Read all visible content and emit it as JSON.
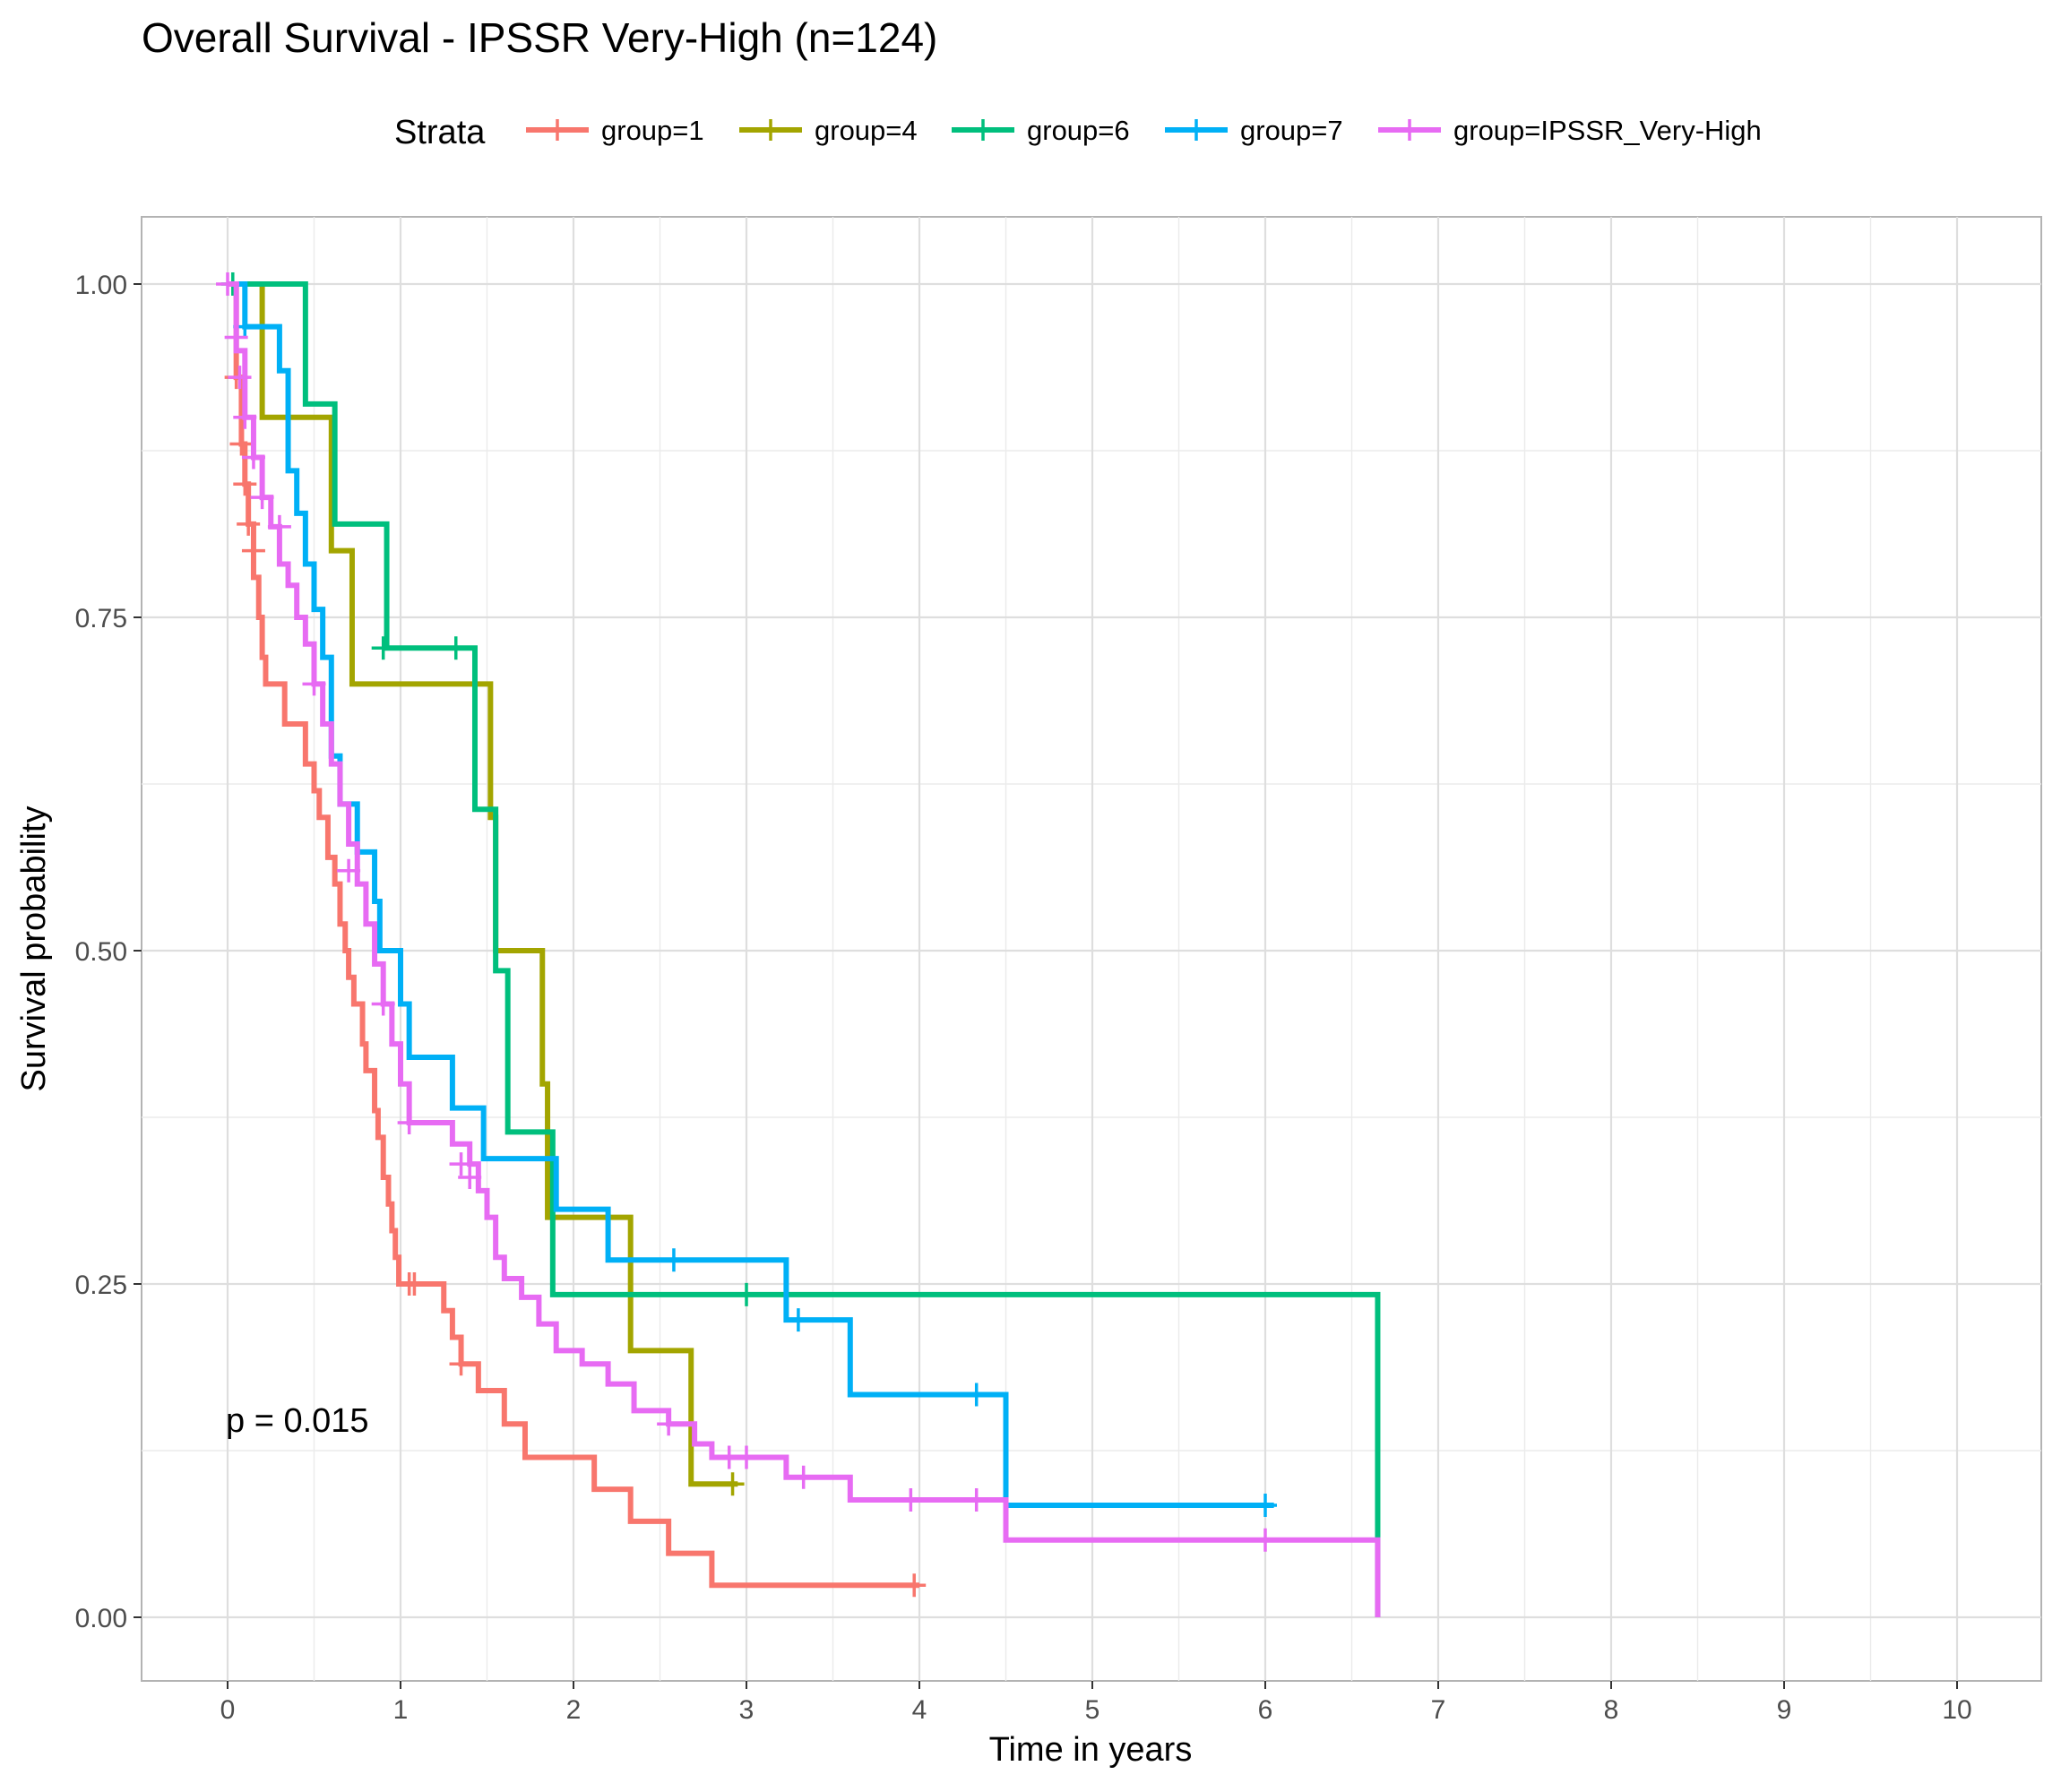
{
  "chart_data": {
    "type": "line",
    "step": true,
    "title": "Overall Survival - IPSSR Very-High (n=124)",
    "xlabel": "Time in years",
    "ylabel": "Survival probability",
    "xlim": [
      -0.5,
      10.5
    ],
    "ylim": [
      -0.05,
      1.05
    ],
    "x_ticks": [
      0,
      1,
      2,
      3,
      4,
      5,
      6,
      7,
      8,
      9,
      10
    ],
    "x_tick_labels": [
      "0",
      "1",
      "2",
      "3",
      "4",
      "5",
      "6",
      "7",
      "8",
      "9",
      "10"
    ],
    "y_ticks": [
      0,
      0.25,
      0.5,
      0.75,
      1
    ],
    "y_tick_labels": [
      "0.00",
      "0.25",
      "0.50",
      "0.75",
      "1.00"
    ],
    "grid": true,
    "legend_title": "Strata",
    "legend_position": "top",
    "annotation": "p = 0.015",
    "series": [
      {
        "name": "group=1",
        "color": "#F8766D",
        "x": [
          0,
          0.05,
          0.08,
          0.1,
          0.12,
          0.15,
          0.18,
          0.2,
          0.22,
          0.25,
          0.33,
          0.45,
          0.5,
          0.53,
          0.58,
          0.62,
          0.65,
          0.68,
          0.7,
          0.73,
          0.78,
          0.8,
          0.85,
          0.87,
          0.9,
          0.93,
          0.95,
          0.97,
          0.99,
          1.0,
          1.25,
          1.3,
          1.35,
          1.45,
          1.6,
          1.72,
          2.12,
          2.33,
          2.55,
          2.8,
          4.0
        ],
        "y": [
          1.0,
          0.93,
          0.88,
          0.85,
          0.82,
          0.78,
          0.75,
          0.72,
          0.7,
          0.7,
          0.67,
          0.64,
          0.62,
          0.6,
          0.57,
          0.55,
          0.52,
          0.5,
          0.48,
          0.46,
          0.43,
          0.41,
          0.38,
          0.36,
          0.33,
          0.31,
          0.29,
          0.27,
          0.25,
          0.25,
          0.23,
          0.21,
          0.19,
          0.17,
          0.145,
          0.12,
          0.096,
          0.072,
          0.048,
          0.024,
          0.024
        ],
        "censor_x": [
          0.05,
          0.08,
          0.1,
          0.12,
          0.15,
          1.05,
          1.08,
          1.35,
          3.97
        ],
        "censor_y": [
          0.93,
          0.88,
          0.85,
          0.82,
          0.8,
          0.25,
          0.25,
          0.19,
          0.024
        ]
      },
      {
        "name": "group=4",
        "color": "#A3A500",
        "x": [
          0,
          0.2,
          0.6,
          0.72,
          1.52,
          1.55,
          1.82,
          1.85,
          2.33,
          2.68,
          2.95
        ],
        "y": [
          1.0,
          0.9,
          0.8,
          0.7,
          0.6,
          0.5,
          0.4,
          0.3,
          0.2,
          0.1,
          0.1
        ],
        "censor_x": [
          2.92
        ],
        "censor_y": [
          0.1
        ]
      },
      {
        "name": "group=6",
        "color": "#00BF7D",
        "x": [
          0,
          0.45,
          0.62,
          0.92,
          1.43,
          1.55,
          1.58,
          1.62,
          1.88,
          6.65,
          6.65
        ],
        "y": [
          1.0,
          0.91,
          0.82,
          0.727,
          0.606,
          0.485,
          0.485,
          0.364,
          0.242,
          0.242,
          0.0
        ],
        "censor_x": [
          0.03,
          0.9,
          1.32,
          3.0
        ],
        "censor_y": [
          1.0,
          0.727,
          0.727,
          0.242
        ]
      },
      {
        "name": "group=7",
        "color": "#00B0F6",
        "x": [
          0,
          0.1,
          0.3,
          0.35,
          0.4,
          0.45,
          0.5,
          0.55,
          0.6,
          0.65,
          0.75,
          0.85,
          0.88,
          1.0,
          1.05,
          1.3,
          1.48,
          1.9,
          2.2,
          3.23,
          3.6,
          4.5,
          6.05
        ],
        "y": [
          1.0,
          0.968,
          0.935,
          0.86,
          0.828,
          0.79,
          0.756,
          0.72,
          0.646,
          0.61,
          0.574,
          0.537,
          0.5,
          0.46,
          0.42,
          0.382,
          0.344,
          0.306,
          0.268,
          0.223,
          0.167,
          0.084,
          0.084
        ],
        "censor_x": [
          0.1,
          2.58,
          3.3,
          4.33,
          6.0
        ],
        "censor_y": [
          0.968,
          0.268,
          0.223,
          0.167,
          0.084
        ]
      },
      {
        "name": "group=IPSSR_Very-High",
        "color": "#E76BF3",
        "x": [
          0,
          0.05,
          0.1,
          0.15,
          0.2,
          0.25,
          0.3,
          0.35,
          0.4,
          0.45,
          0.5,
          0.55,
          0.6,
          0.65,
          0.7,
          0.75,
          0.8,
          0.85,
          0.9,
          0.95,
          1.0,
          1.05,
          1.3,
          1.4,
          1.45,
          1.5,
          1.55,
          1.6,
          1.7,
          1.8,
          1.9,
          2.05,
          2.2,
          2.35,
          2.55,
          2.7,
          2.8,
          3.23,
          3.6,
          4.5,
          6.65,
          6.65
        ],
        "y": [
          1.0,
          0.95,
          0.9,
          0.87,
          0.84,
          0.818,
          0.79,
          0.774,
          0.75,
          0.73,
          0.7,
          0.67,
          0.64,
          0.61,
          0.58,
          0.55,
          0.52,
          0.49,
          0.46,
          0.43,
          0.4,
          0.371,
          0.355,
          0.34,
          0.32,
          0.3,
          0.27,
          0.254,
          0.24,
          0.22,
          0.2,
          0.19,
          0.175,
          0.155,
          0.145,
          0.13,
          0.12,
          0.105,
          0.088,
          0.058,
          0.058,
          0.0
        ],
        "censor_x": [
          0,
          0.05,
          0.07,
          0.1,
          0.15,
          0.2,
          0.3,
          0.5,
          0.7,
          0.9,
          1.05,
          1.35,
          1.4,
          2.55,
          2.9,
          3.0,
          3.33,
          3.95,
          4.33,
          6.0
        ],
        "censor_y": [
          1.0,
          0.96,
          0.93,
          0.9,
          0.87,
          0.84,
          0.818,
          0.7,
          0.56,
          0.46,
          0.371,
          0.34,
          0.33,
          0.145,
          0.12,
          0.12,
          0.105,
          0.088,
          0.088,
          0.058
        ]
      }
    ]
  }
}
